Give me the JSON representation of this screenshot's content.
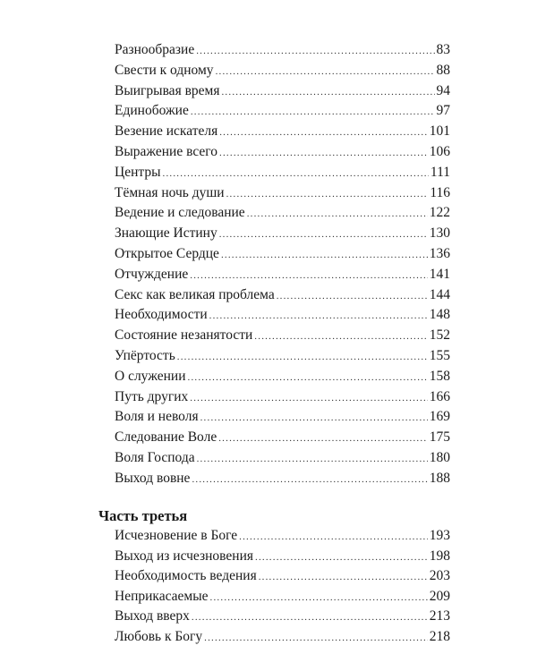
{
  "toc_part2": [
    {
      "title": "Разнообразие",
      "page": "83"
    },
    {
      "title": "Свести к одному",
      "page": "88"
    },
    {
      "title": "Выигрывая время",
      "page": "94"
    },
    {
      "title": "Единобожие",
      "page": "97"
    },
    {
      "title": "Везение искателя",
      "page": "101"
    },
    {
      "title": "Выражение всего",
      "page": "106"
    },
    {
      "title": "Центры",
      "page": "111"
    },
    {
      "title": "Тёмная ночь души",
      "page": "116"
    },
    {
      "title": "Ведение и следование",
      "page": "122"
    },
    {
      "title": "Знающие Истину",
      "page": "130"
    },
    {
      "title": "Открытое Сердце",
      "page": "136"
    },
    {
      "title": "Отчуждение",
      "page": "141"
    },
    {
      "title": "Секс как великая проблема",
      "page": "144"
    },
    {
      "title": "Необходимости",
      "page": "148"
    },
    {
      "title": "Состояние незанятости",
      "page": "152"
    },
    {
      "title": "Упёртость",
      "page": "155"
    },
    {
      "title": "О служении",
      "page": "158"
    },
    {
      "title": "Путь других",
      "page": "166"
    },
    {
      "title": "Воля и неволя",
      "page": "169"
    },
    {
      "title": "Следование Воле",
      "page": "175"
    },
    {
      "title": "Воля Господа",
      "page": "180"
    },
    {
      "title": "Выход вовне",
      "page": "188"
    }
  ],
  "part3": {
    "heading": "Часть третья",
    "entries": [
      {
        "title": "Исчезновение в Боге",
        "page": "193"
      },
      {
        "title": "Выход из исчезновения",
        "page": "198"
      },
      {
        "title": "Необходимость ведения",
        "page": "203"
      },
      {
        "title": "Неприкасаемые",
        "page": "209"
      },
      {
        "title": "Выход вверх",
        "page": "213"
      },
      {
        "title": "Любовь к Богу",
        "page": "218"
      }
    ]
  }
}
